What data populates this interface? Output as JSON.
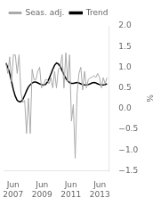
{
  "chart_data": {
    "type": "line",
    "title": "",
    "ylabel": "%",
    "x": [
      0,
      0.518519,
      1.037037,
      1.555556,
      2.074074,
      2.592593,
      3.111111,
      3.62963,
      4.148148,
      4.666667,
      5.185185,
      5.703704,
      6.222222,
      6.740741,
      7.259259,
      7.777778,
      8.296296,
      8.814815,
      9.333333,
      9.851852,
      10.37037,
      10.888889,
      11.407407,
      11.925926,
      12.444444,
      12.962963,
      13.481481,
      14,
      14.518519,
      15.037037,
      15.555556,
      16.074074,
      16.592593,
      17.111111,
      17.62963,
      18.148148,
      18.666667,
      19.185185,
      19.703704,
      20.222222,
      20.740741,
      21.259259,
      21.777778,
      22.296296,
      22.814815,
      23.333333,
      23.851852,
      24.37037,
      24.888889,
      25.407407,
      25.925926,
      26.444444,
      26.962963,
      27.481481,
      28
    ],
    "series": [
      {
        "name": "Seas. adj.",
        "color": "#aaaaaa",
        "values": [
          1.1,
          0.85,
          1.25,
          0.65,
          1.3,
          1.3,
          0.85,
          1.3,
          0.4,
          0.15,
          0.2,
          -0.6,
          0.25,
          -0.6,
          0.95,
          0.7,
          0.7,
          0.9,
          1.0,
          0.5,
          0.55,
          0.7,
          0.7,
          0.6,
          0.75,
          0.5,
          0.9,
          0.5,
          0.95,
          1.0,
          1.3,
          0.5,
          1.35,
          0.65,
          1.3,
          -0.3,
          0.1,
          -1.2,
          0.35,
          0.85,
          1.0,
          0.45,
          0.9,
          0.5,
          0.7,
          0.75,
          0.75,
          0.8,
          0.75,
          0.85,
          0.75,
          0.5,
          0.75,
          0.6,
          0.75
        ]
      },
      {
        "name": "Trend",
        "color": "#000000",
        "values": [
          1.1,
          1.0,
          0.85,
          0.65,
          0.45,
          0.3,
          0.2,
          0.17,
          0.17,
          0.22,
          0.32,
          0.43,
          0.52,
          0.58,
          0.62,
          0.64,
          0.64,
          0.62,
          0.6,
          0.58,
          0.57,
          0.58,
          0.63,
          0.72,
          0.83,
          0.95,
          1.05,
          1.1,
          1.08,
          1.02,
          0.92,
          0.82,
          0.73,
          0.67,
          0.63,
          0.61,
          0.61,
          0.62,
          0.63,
          0.62,
          0.6,
          0.58,
          0.57,
          0.57,
          0.58,
          0.6,
          0.62,
          0.63,
          0.62,
          0.6,
          0.58,
          0.57,
          0.57,
          0.58,
          0.6
        ]
      }
    ],
    "xlim": [
      -0.5,
      28.5
    ],
    "xticks": [
      {
        "value": 2,
        "label": "Jun\n2007"
      },
      {
        "value": 10,
        "label": "Jun\n2009"
      },
      {
        "value": 18,
        "label": "Jun\n2011"
      },
      {
        "value": 26,
        "label": "Jun\n2013"
      }
    ],
    "ylim": [
      -1.5,
      2.0
    ],
    "yticks": [
      {
        "value": -1.5,
        "label": "−1.5"
      },
      {
        "value": -1.0,
        "label": "−1.0"
      },
      {
        "value": -0.5,
        "label": "−0.5"
      },
      {
        "value": 0.0,
        "label": "0.0"
      },
      {
        "value": 0.5,
        "label": "0.5"
      },
      {
        "value": 1.0,
        "label": "1.0"
      },
      {
        "value": 1.5,
        "label": "1.5"
      },
      {
        "value": 2.0,
        "label": "2.0"
      }
    ],
    "grid": false,
    "legend": "top-left"
  }
}
